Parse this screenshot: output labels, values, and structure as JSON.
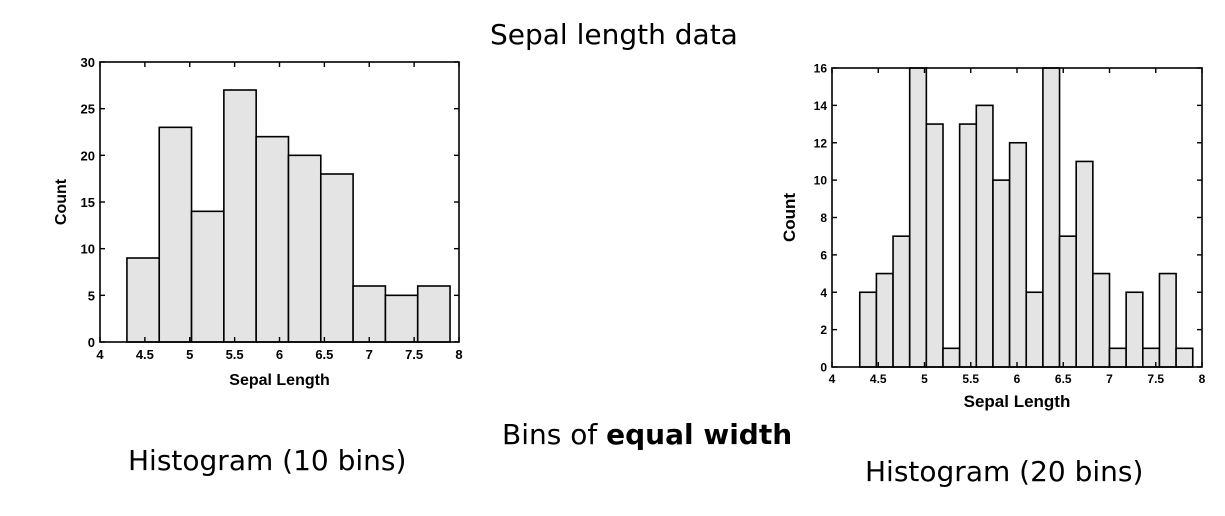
{
  "title": "Sepal length data",
  "bins_caption": {
    "prefix": "Bins of ",
    "emphasis": "equal width"
  },
  "chart_data": [
    {
      "type": "bar",
      "caption": "Histogram (10 bins)",
      "xlabel": "Sepal Length",
      "ylabel": "Count",
      "xlim": [
        4,
        8
      ],
      "ylim": [
        0,
        30
      ],
      "xticks": [
        4,
        4.5,
        5,
        5.5,
        6,
        6.5,
        7,
        7.5,
        8
      ],
      "xtick_labels": [
        "4",
        "4.5",
        "5",
        "5.5",
        "6",
        "6.5",
        "7",
        "7.5",
        "8"
      ],
      "yticks": [
        0,
        5,
        10,
        15,
        20,
        25,
        30
      ],
      "ytick_labels": [
        "0",
        "5",
        "10",
        "15",
        "20",
        "25",
        "30"
      ],
      "bin_edges": [
        4.3,
        4.66,
        5.02,
        5.38,
        5.74,
        6.1,
        6.46,
        6.82,
        7.18,
        7.54,
        7.9
      ],
      "values": [
        9,
        23,
        14,
        27,
        22,
        20,
        18,
        6,
        5,
        6
      ]
    },
    {
      "type": "bar",
      "caption": "Histogram (20 bins)",
      "xlabel": "Sepal Length",
      "ylabel": "Count",
      "xlim": [
        4,
        8
      ],
      "ylim": [
        0,
        16
      ],
      "xticks": [
        4,
        4.5,
        5,
        5.5,
        6,
        6.5,
        7,
        7.5,
        8
      ],
      "xtick_labels": [
        "4",
        "4.5",
        "5",
        "5.5",
        "6",
        "6.5",
        "7",
        "7.5",
        "8"
      ],
      "yticks": [
        0,
        2,
        4,
        6,
        8,
        10,
        12,
        14,
        16
      ],
      "ytick_labels": [
        "0",
        "2",
        "4",
        "6",
        "8",
        "10",
        "12",
        "14",
        "16"
      ],
      "bin_edges": [
        4.3,
        4.48,
        4.66,
        4.84,
        5.02,
        5.2,
        5.38,
        5.56,
        5.74,
        5.92,
        6.1,
        6.28,
        6.46,
        6.64,
        6.82,
        7.0,
        7.18,
        7.36,
        7.54,
        7.72,
        7.9
      ],
      "values": [
        4,
        5,
        7,
        16,
        13,
        1,
        13,
        14,
        10,
        12,
        4,
        16,
        7,
        11,
        5,
        1,
        4,
        1,
        5,
        1
      ]
    }
  ]
}
